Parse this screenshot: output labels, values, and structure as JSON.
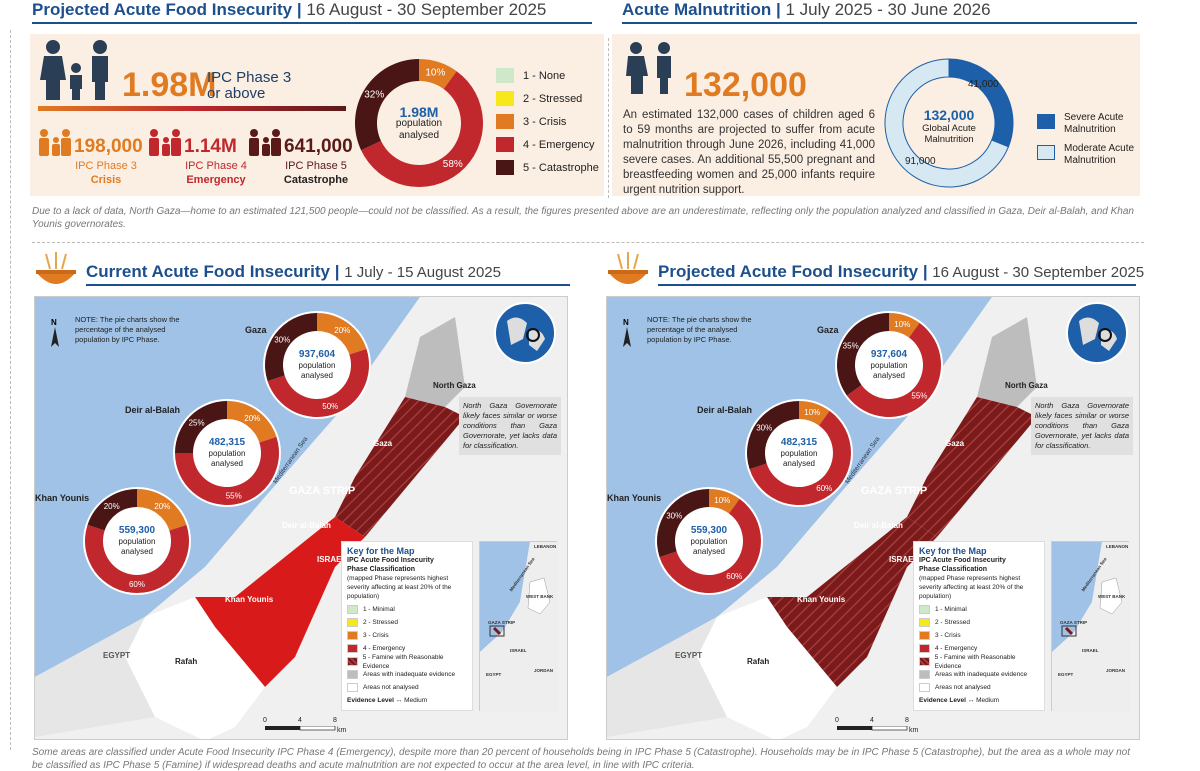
{
  "left_header": {
    "title": "Projected Acute Food Insecurity",
    "sep": "|",
    "dates": "16 August - 30 September 2025"
  },
  "right_header": {
    "title": "Acute Malnutrition",
    "sep": "|",
    "dates": "1 July 2025 - 30 June 2026"
  },
  "food": {
    "big_value": "1.98M",
    "big_label_1": "IPC Phase 3",
    "big_label_2": "or above",
    "phases": [
      {
        "value": "198,000",
        "label": "IPC Phase 3",
        "name": "Crisis",
        "color": "#e07b22"
      },
      {
        "value": "1.14M",
        "label": "IPC Phase 4",
        "name": "Emergency",
        "color": "#c0282d"
      },
      {
        "value": "641,000",
        "label": "IPC Phase 5",
        "name": "Catastrophe",
        "color": "#5a1a1a"
      }
    ],
    "donut": {
      "center_value": "1.98M",
      "center_l1": "population",
      "center_l2": "analysed",
      "slices": [
        {
          "pct": 10,
          "label": "10%",
          "color": "#e07b22"
        },
        {
          "pct": 58,
          "label": "58%",
          "color": "#c0282d"
        },
        {
          "pct": 32,
          "label": "32%",
          "color": "#4a1515"
        }
      ]
    },
    "legend": [
      {
        "label": "1 - None",
        "color": "#cfe8c9"
      },
      {
        "label": "2 - Stressed",
        "color": "#f7e81c"
      },
      {
        "label": "3 - Crisis",
        "color": "#e07b22"
      },
      {
        "label": "4 - Emergency",
        "color": "#c0282d"
      },
      {
        "label": "5 - Catastrophe",
        "color": "#4a1515"
      }
    ]
  },
  "malnutrition": {
    "big_value": "132,000",
    "paragraph": "An estimated 132,000 cases of children aged 6 to 59 months are projected to suffer from acute malnutrition through June 2026, including 41,000 severe cases. An additional 55,500 pregnant and breastfeeding women and 25,000 infants require urgent nutrition support.",
    "donut": {
      "center_value": "132,000",
      "center_l1": "Global Acute",
      "center_l2": "Malnutrition",
      "slices": [
        {
          "value": 41000,
          "label": "41,000",
          "color": "#1d5fa8"
        },
        {
          "value": 91000,
          "label": "91,000",
          "color": "#d6e9f3"
        }
      ]
    },
    "legend": [
      {
        "l1": "Severe Acute",
        "l2": "Malnutrition",
        "color": "#1d5fa8"
      },
      {
        "l1": "Moderate Acute",
        "l2": "Malnutrition",
        "color": "#d6e9f3"
      }
    ]
  },
  "note_top": "Due to a lack of data, North Gaza—home to an estimated 121,500 people—could not be classified. As a result, the figures presented above are an underestimate, reflecting only the population analyzed and classified in Gaza, Deir al-Balah, and Khan Younis governorates.",
  "maps": [
    {
      "title": "Current Acute Food Insecurity",
      "sep": "|",
      "dates": "1 July - 15 August 2025",
      "note": "NOTE: The pie charts show the percentage of the analysed population by IPC Phase.",
      "donuts": [
        {
          "name": "Gaza",
          "value": "937,604",
          "l1": "population",
          "l2": "analysed",
          "slices": [
            {
              "pct": 20,
              "label": "20%",
              "color": "#e07b22"
            },
            {
              "pct": 50,
              "label": "50%",
              "color": "#c0282d"
            },
            {
              "pct": 30,
              "label": "30%",
              "color": "#4a1515"
            }
          ]
        },
        {
          "name": "Deir al-Balah",
          "value": "482,315",
          "l1": "population",
          "l2": "analysed",
          "slices": [
            {
              "pct": 20,
              "label": "20%",
              "color": "#e07b22"
            },
            {
              "pct": 55,
              "label": "55%",
              "color": "#c0282d"
            },
            {
              "pct": 25,
              "label": "25%",
              "color": "#4a1515"
            }
          ]
        },
        {
          "name": "Khan Younis",
          "value": "559,300",
          "l1": "population",
          "l2": "analysed",
          "slices": [
            {
              "pct": 20,
              "label": "20%",
              "color": "#e07b22"
            },
            {
              "pct": 60,
              "label": "60%",
              "color": "#c0282d"
            },
            {
              "pct": 20,
              "label": "20%",
              "color": "#4a1515"
            }
          ]
        }
      ]
    },
    {
      "title": "Projected Acute Food Insecurity",
      "sep": "|",
      "dates": "16 August - 30 September 2025",
      "note": "NOTE: The pie charts show the percentage of the analysed population by IPC Phase.",
      "donuts": [
        {
          "name": "Gaza",
          "value": "937,604",
          "l1": "population",
          "l2": "analysed",
          "slices": [
            {
              "pct": 10,
              "label": "10%",
              "color": "#e07b22"
            },
            {
              "pct": 55,
              "label": "55%",
              "color": "#c0282d"
            },
            {
              "pct": 35,
              "label": "35%",
              "color": "#4a1515"
            }
          ]
        },
        {
          "name": "Deir al-Balah",
          "value": "482,315",
          "l1": "population",
          "l2": "analysed",
          "slices": [
            {
              "pct": 10,
              "label": "10%",
              "color": "#e07b22"
            },
            {
              "pct": 60,
              "label": "60%",
              "color": "#c0282d"
            },
            {
              "pct": 30,
              "label": "30%",
              "color": "#4a1515"
            }
          ]
        },
        {
          "name": "Khan Younis",
          "value": "559,300",
          "l1": "population",
          "l2": "analysed",
          "slices": [
            {
              "pct": 10,
              "label": "10%",
              "color": "#e07b22"
            },
            {
              "pct": 60,
              "label": "60%",
              "color": "#c0282d"
            },
            {
              "pct": 30,
              "label": "30%",
              "color": "#4a1515"
            }
          ]
        }
      ]
    }
  ],
  "map_labels": {
    "north_gaza": "North Gaza",
    "gaza_gov": "Gaza",
    "gaza_strip": "GAZA STRIP",
    "deir": "Deir al-Balah",
    "khan": "Khan Younis",
    "rafah": "Rafah",
    "egypt": "EGYPT",
    "israel": "ISRAEL",
    "sea": "Mediterranean Sea",
    "north_note": "North Gaza Governorate likely faces similar or worse conditions than Gaza Governorate, yet lacks data for classification."
  },
  "map_key": {
    "title": "Key for the Map",
    "h1": "IPC Acute Food Insecurity",
    "h2": "Phase Classification",
    "sub": "(mapped Phase represents highest severity affecting at least 20% of the population)",
    "items": [
      {
        "label": "1 - Minimal",
        "color": "#cfe8c9"
      },
      {
        "label": "2 - Stressed",
        "color": "#f7e81c"
      },
      {
        "label": "3 - Crisis",
        "color": "#e07b22"
      },
      {
        "label": "4 - Emergency",
        "color": "#c0282d"
      },
      {
        "label": "5 - Famine with Reasonable Evidence",
        "color": "#6b1d1d"
      },
      {
        "label": "Areas with inadequate evidence",
        "color": "#bdbdbd"
      },
      {
        "label": "Areas not analysed",
        "color": "#ffffff"
      }
    ],
    "evidence": "Evidence Level",
    "evidence_val": "Medium"
  },
  "inset_labels": {
    "sea": "Mediterranean Sea",
    "west_bank": "WEST BANK",
    "gaza": "GAZA STRIP",
    "israel": "ISRAEL",
    "egypt": "EGYPT",
    "jordan": "JORDAN",
    "lebanon": "LEBANON"
  },
  "scale": {
    "t0": "0",
    "t1": "4",
    "t2": "8",
    "unit": "km"
  },
  "note_bottom": "Some areas are classified under Acute Food Insecurity IPC Phase 4 (Emergency), despite more than 20 percent of households being in IPC Phase 5 (Catastrophe). Households may be in IPC Phase 5 (Catastrophe), but the area as a whole may not be classified as IPC Phase 5 (Famine) if widespread deaths and acute malnutrition are not expected to occur at the area level, in line with IPC criteria."
}
